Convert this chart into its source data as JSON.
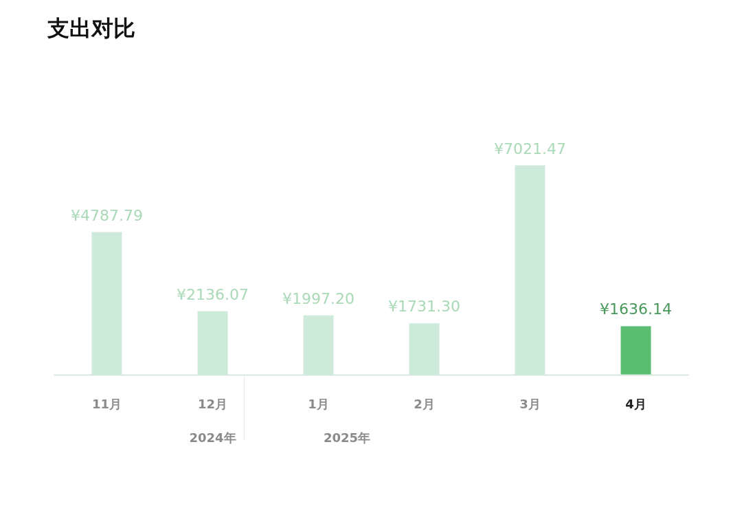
{
  "chart_data": {
    "type": "bar",
    "title": "支出对比",
    "categories": [
      "11月",
      "12月",
      "1月",
      "2月",
      "3月",
      "4月"
    ],
    "values": [
      4787.79,
      2136.07,
      1997.2,
      1731.3,
      7021.47,
      1636.14
    ],
    "colors": [
      "#cdeadb",
      "#cdeadb",
      "#cdeadb",
      "#cdeadb",
      "#cdeadb",
      "#5bbd72"
    ],
    "data_labels": true,
    "value_labels": [
      "¥4787.79",
      "¥2136.07",
      "¥1997.20",
      "¥1731.30",
      "¥7021.47",
      "¥1636.14"
    ],
    "annotations": [
      "2024年",
      "2025年"
    ]
  }
}
